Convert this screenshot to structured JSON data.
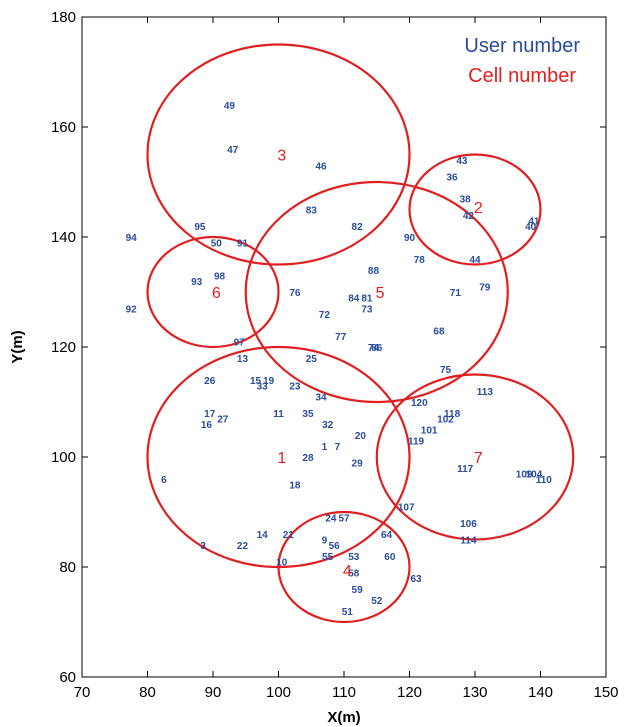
{
  "chart_data": {
    "type": "scatter",
    "xlabel": "X(m)",
    "ylabel": "Y(m)",
    "xlim": [
      70,
      150
    ],
    "ylim": [
      60,
      180
    ],
    "xticks": [
      70,
      80,
      90,
      100,
      110,
      120,
      130,
      140,
      150
    ],
    "yticks": [
      60,
      80,
      100,
      120,
      140,
      160,
      180
    ],
    "grid": false,
    "legend": {
      "placement": "top-right",
      "entries": [
        {
          "label": "User number",
          "color": "#2a4c9c"
        },
        {
          "label": "Cell number",
          "color": "#e02020"
        }
      ]
    },
    "cells": [
      {
        "id": "1",
        "label_x": 100.5,
        "label_y": 100,
        "circle": {
          "cx": 100,
          "cy": 100,
          "rx": 20,
          "ry": 20
        }
      },
      {
        "id": "2",
        "label_x": 130.5,
        "label_y": 145.5,
        "circle": {
          "cx": 130,
          "cy": 145,
          "rx": 10,
          "ry": 10
        }
      },
      {
        "id": "3",
        "label_x": 100.5,
        "label_y": 155,
        "circle": {
          "cx": 100,
          "cy": 155,
          "rx": 20,
          "ry": 20
        }
      },
      {
        "id": "4",
        "label_x": 110.5,
        "label_y": 79.5,
        "circle": {
          "cx": 110,
          "cy": 80,
          "rx": 10,
          "ry": 10
        }
      },
      {
        "id": "5",
        "label_x": 115.5,
        "label_y": 130,
        "circle": {
          "cx": 115,
          "cy": 130,
          "rx": 20,
          "ry": 20
        }
      },
      {
        "id": "6",
        "label_x": 90.5,
        "label_y": 130,
        "circle": {
          "cx": 90,
          "cy": 130,
          "rx": 10,
          "ry": 10
        }
      },
      {
        "id": "7",
        "label_x": 130.5,
        "label_y": 100,
        "circle": {
          "cx": 130,
          "cy": 100,
          "rx": 15,
          "ry": 15
        }
      }
    ],
    "users": [
      {
        "id": "1",
        "x": 107,
        "y": 102
      },
      {
        "id": "3",
        "x": 88.5,
        "y": 84
      },
      {
        "id": "6",
        "x": 82.5,
        "y": 96
      },
      {
        "id": "7",
        "x": 109,
        "y": 102
      },
      {
        "id": "9",
        "x": 107,
        "y": 85
      },
      {
        "id": "10",
        "x": 100.5,
        "y": 81
      },
      {
        "id": "11",
        "x": 100,
        "y": 108
      },
      {
        "id": "13",
        "x": 94.5,
        "y": 118
      },
      {
        "id": "14",
        "x": 97.5,
        "y": 86
      },
      {
        "id": "15",
        "x": 96.5,
        "y": 114
      },
      {
        "id": "16",
        "x": 89,
        "y": 106
      },
      {
        "id": "17",
        "x": 89.5,
        "y": 108
      },
      {
        "id": "18",
        "x": 102.5,
        "y": 95
      },
      {
        "id": "19",
        "x": 98.5,
        "y": 114
      },
      {
        "id": "20",
        "x": 112.5,
        "y": 104
      },
      {
        "id": "21",
        "x": 101.5,
        "y": 86
      },
      {
        "id": "22",
        "x": 94.5,
        "y": 84
      },
      {
        "id": "23",
        "x": 102.5,
        "y": 113
      },
      {
        "id": "24",
        "x": 108,
        "y": 89
      },
      {
        "id": "25",
        "x": 105,
        "y": 118
      },
      {
        "id": "26",
        "x": 89.5,
        "y": 114
      },
      {
        "id": "27",
        "x": 91.5,
        "y": 107
      },
      {
        "id": "28",
        "x": 104.5,
        "y": 100
      },
      {
        "id": "29",
        "x": 112,
        "y": 99
      },
      {
        "id": "32",
        "x": 107.5,
        "y": 106
      },
      {
        "id": "33",
        "x": 97.5,
        "y": 113
      },
      {
        "id": "34",
        "x": 106.5,
        "y": 111
      },
      {
        "id": "35",
        "x": 104.5,
        "y": 108
      },
      {
        "id": "36",
        "x": 126.5,
        "y": 151
      },
      {
        "id": "38",
        "x": 128.5,
        "y": 147
      },
      {
        "id": "40",
        "x": 138.5,
        "y": 142
      },
      {
        "id": "41",
        "x": 139,
        "y": 143
      },
      {
        "id": "42",
        "x": 129,
        "y": 144
      },
      {
        "id": "43",
        "x": 128,
        "y": 154
      },
      {
        "id": "44",
        "x": 130,
        "y": 136
      },
      {
        "id": "46",
        "x": 106.5,
        "y": 153
      },
      {
        "id": "47",
        "x": 93,
        "y": 156
      },
      {
        "id": "49",
        "x": 92.5,
        "y": 164
      },
      {
        "id": "50",
        "x": 90.5,
        "y": 139
      },
      {
        "id": "51",
        "x": 110.5,
        "y": 72
      },
      {
        "id": "52",
        "x": 115,
        "y": 74
      },
      {
        "id": "53",
        "x": 111.5,
        "y": 82
      },
      {
        "id": "55",
        "x": 107.5,
        "y": 82
      },
      {
        "id": "56",
        "x": 108.5,
        "y": 84
      },
      {
        "id": "57",
        "x": 110,
        "y": 89
      },
      {
        "id": "58",
        "x": 111.5,
        "y": 79
      },
      {
        "id": "59",
        "x": 112,
        "y": 76
      },
      {
        "id": "60",
        "x": 117,
        "y": 82
      },
      {
        "id": "63",
        "x": 121,
        "y": 78
      },
      {
        "id": "64",
        "x": 116.5,
        "y": 86
      },
      {
        "id": "68",
        "x": 124.5,
        "y": 123
      },
      {
        "id": "71",
        "x": 127,
        "y": 130
      },
      {
        "id": "72",
        "x": 107,
        "y": 126
      },
      {
        "id": "73",
        "x": 113.5,
        "y": 127
      },
      {
        "id": "74",
        "x": 114.5,
        "y": 120
      },
      {
        "id": "75",
        "x": 125.5,
        "y": 116
      },
      {
        "id": "76",
        "x": 102.5,
        "y": 130
      },
      {
        "id": "77",
        "x": 109.5,
        "y": 122
      },
      {
        "id": "78",
        "x": 121.5,
        "y": 136
      },
      {
        "id": "79",
        "x": 131.5,
        "y": 131
      },
      {
        "id": "81",
        "x": 113.5,
        "y": 129
      },
      {
        "id": "82",
        "x": 112,
        "y": 142
      },
      {
        "id": "83",
        "x": 105,
        "y": 145
      },
      {
        "id": "84",
        "x": 111.5,
        "y": 129
      },
      {
        "id": "86",
        "x": 115,
        "y": 120
      },
      {
        "id": "88",
        "x": 114.5,
        "y": 134
      },
      {
        "id": "90",
        "x": 120,
        "y": 140
      },
      {
        "id": "91",
        "x": 94.5,
        "y": 139
      },
      {
        "id": "92",
        "x": 77.5,
        "y": 127
      },
      {
        "id": "93",
        "x": 87.5,
        "y": 132
      },
      {
        "id": "94",
        "x": 77.5,
        "y": 140
      },
      {
        "id": "95",
        "x": 88,
        "y": 142
      },
      {
        "id": "97",
        "x": 94,
        "y": 121
      },
      {
        "id": "98",
        "x": 91,
        "y": 133
      },
      {
        "id": "101",
        "x": 123,
        "y": 105
      },
      {
        "id": "102",
        "x": 125.5,
        "y": 107
      },
      {
        "id": "104",
        "x": 139,
        "y": 97
      },
      {
        "id": "106",
        "x": 129,
        "y": 88
      },
      {
        "id": "107",
        "x": 119.5,
        "y": 91
      },
      {
        "id": "109",
        "x": 137.5,
        "y": 97
      },
      {
        "id": "110",
        "x": 140.5,
        "y": 96
      },
      {
        "id": "113",
        "x": 131.5,
        "y": 112
      },
      {
        "id": "114",
        "x": 129,
        "y": 85
      },
      {
        "id": "117",
        "x": 128.5,
        "y": 98
      },
      {
        "id": "118",
        "x": 126.5,
        "y": 108
      },
      {
        "id": "119",
        "x": 121,
        "y": 103
      },
      {
        "id": "120",
        "x": 121.5,
        "y": 110
      }
    ]
  }
}
